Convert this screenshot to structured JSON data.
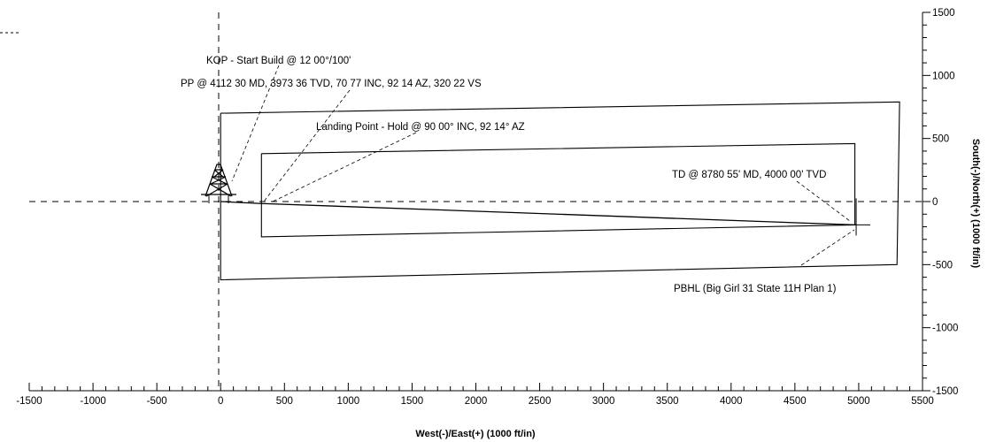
{
  "chart_data": {
    "type": "line",
    "title": "",
    "xlabel": "West(-)/East(+) (1000 ft/in)",
    "ylabel": "South(-)/North(+) (1000 ft/in)",
    "xlim": [
      -1500,
      5500
    ],
    "ylim": [
      -1500,
      1500
    ],
    "x_ticks": [
      "-1500",
      "-1000",
      "-500",
      "0",
      "500",
      "1000",
      "1500",
      "2000",
      "2500",
      "3000",
      "3500",
      "4000",
      "4500",
      "5000",
      "5500"
    ],
    "y_ticks": [
      "1500",
      "1000",
      "500",
      "0",
      "-500",
      "-1000",
      "-1500"
    ],
    "grid": false,
    "series": [
      {
        "role": "wellpath",
        "x": [
          0,
          300,
          4980
        ],
        "y": [
          0,
          -15,
          -185
        ]
      },
      {
        "role": "outer-boundary",
        "x": [
          0,
          5320,
          5300,
          0,
          0
        ],
        "y": [
          700,
          790,
          -500,
          -620,
          700
        ]
      },
      {
        "role": "inner-boundary",
        "x": [
          320,
          4970,
          4970,
          320,
          320
        ],
        "y": [
          380,
          460,
          -185,
          -280,
          380
        ]
      }
    ],
    "markers": [
      {
        "role": "rig-surface-location",
        "x": 0,
        "y": 0
      },
      {
        "role": "pbhl-target",
        "x": 4980,
        "y": -185
      }
    ],
    "annotations": [
      {
        "text": "KOP - Start Build @ 12 00°/100'",
        "x": 100,
        "y": 160
      },
      {
        "text": "PP @ 4112 30 MD, 3973 36 TVD, 70 77 INC, 92 14 AZ, 320 22 VS",
        "x": 320,
        "y": 0
      },
      {
        "text": "Landing Point - Hold @ 90 00° INC, 92 14° AZ",
        "x": 420,
        "y": 0
      },
      {
        "text": "TD @ 8780 55' MD, 4000 00' TVD",
        "x": 4980,
        "y": -185
      },
      {
        "text": "PBHL (Big Girl 31 State 11H Plan 1)",
        "x": 4980,
        "y": -185
      }
    ]
  }
}
